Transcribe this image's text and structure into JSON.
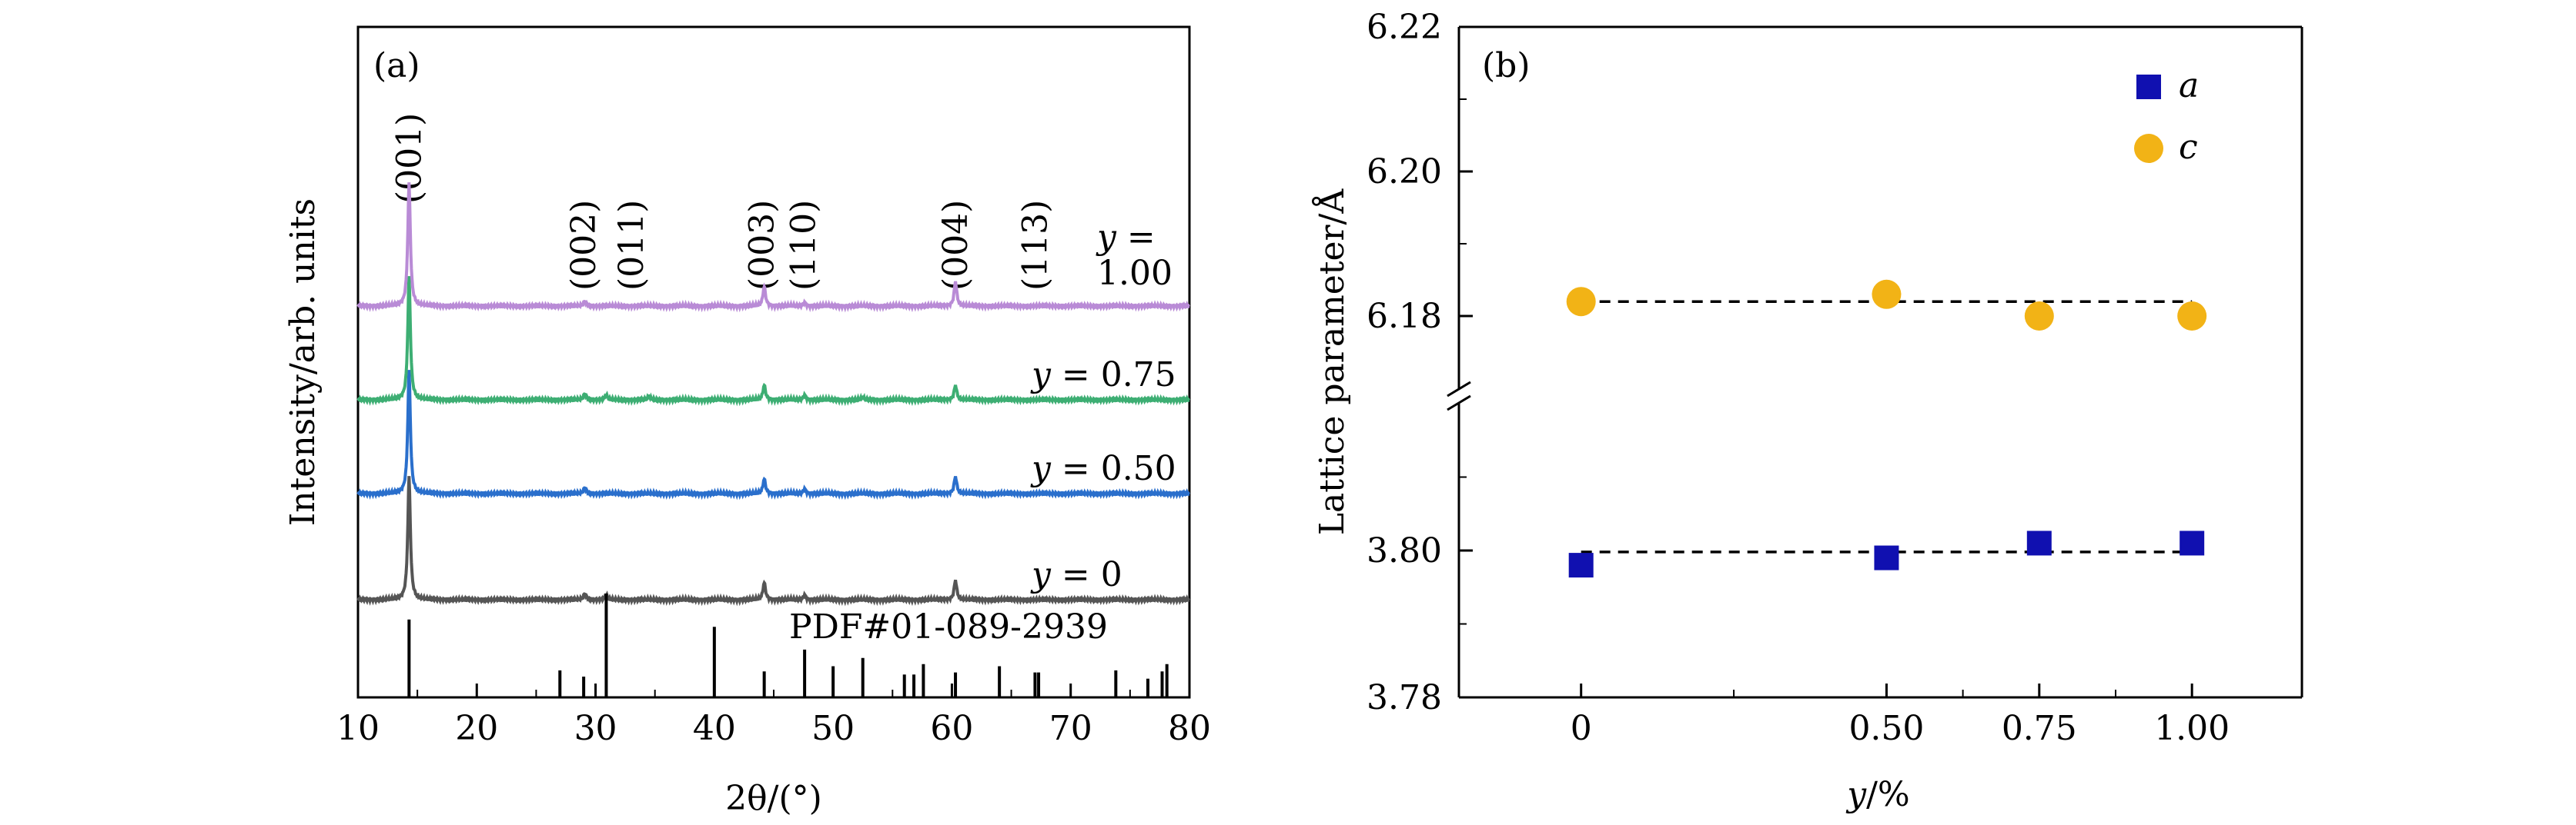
{
  "chart_data": [
    {
      "panel": "(a)",
      "type": "line",
      "xlabel": "2θ/(°)",
      "ylabel": "Intensity/arb. units",
      "xlim": [
        10,
        80
      ],
      "x_ticks": [
        "10",
        "20",
        "30",
        "40",
        "50",
        "60",
        "70",
        "80"
      ],
      "peak_labels": [
        {
          "text": "(001)",
          "x": 14.3
        },
        {
          "text": "(002)",
          "x": 29.0
        },
        {
          "text": "(011)",
          "x": 33.0
        },
        {
          "text": "(003)",
          "x": 44.0
        },
        {
          "text": "(110)",
          "x": 47.5
        },
        {
          "text": "(004)",
          "x": 60.3
        },
        {
          "text": "(113)",
          "x": 67.0
        }
      ],
      "series": [
        {
          "name": "y = 0",
          "color": "#555555",
          "peaks": [
            [
              14.3,
              1.0
            ],
            [
              29.1,
              0.05
            ],
            [
              30.9,
              0.04
            ],
            [
              44.2,
              0.14
            ],
            [
              47.6,
              0.04
            ],
            [
              60.3,
              0.16
            ]
          ]
        },
        {
          "name": "y = 0.50",
          "color": "#2a6fcc",
          "peaks": [
            [
              14.3,
              1.0
            ],
            [
              29.1,
              0.05
            ],
            [
              44.2,
              0.12
            ],
            [
              47.6,
              0.04
            ],
            [
              60.3,
              0.14
            ]
          ]
        },
        {
          "name": "y = 0.75",
          "color": "#3dae73",
          "peaks": [
            [
              14.3,
              1.0
            ],
            [
              29.1,
              0.05
            ],
            [
              30.9,
              0.04
            ],
            [
              34.5,
              0.03
            ],
            [
              44.2,
              0.12
            ],
            [
              47.6,
              0.04
            ],
            [
              52.5,
              0.02
            ],
            [
              60.3,
              0.12
            ]
          ]
        },
        {
          "name_lines": [
            "y =",
            "1.00"
          ],
          "color": "#b98bd6",
          "peaks": [
            [
              14.3,
              1.0
            ],
            [
              29.1,
              0.04
            ],
            [
              44.2,
              0.16
            ],
            [
              47.6,
              0.03
            ],
            [
              60.3,
              0.2
            ]
          ]
        }
      ],
      "reference": {
        "label": "PDF#01-089-2939",
        "sticks": [
          [
            14.3,
            0.75
          ],
          [
            27.0,
            0.26
          ],
          [
            29.0,
            0.2
          ],
          [
            30.9,
            1.0
          ],
          [
            40.0,
            0.68
          ],
          [
            44.2,
            0.25
          ],
          [
            47.6,
            0.46
          ],
          [
            50.0,
            0.3
          ],
          [
            52.5,
            0.38
          ],
          [
            56.0,
            0.22
          ],
          [
            56.8,
            0.22
          ],
          [
            57.6,
            0.32
          ],
          [
            60.3,
            0.24
          ],
          [
            64.0,
            0.3
          ],
          [
            67.0,
            0.24
          ],
          [
            67.3,
            0.24
          ],
          [
            73.8,
            0.26
          ],
          [
            76.5,
            0.18
          ],
          [
            77.7,
            0.25
          ],
          [
            78.1,
            0.32
          ]
        ]
      }
    },
    {
      "panel": "(b)",
      "type": "scatter",
      "xlabel": "y/%",
      "ylabel": "Lattice parameter/Å",
      "x": [
        0,
        0.5,
        0.75,
        1.0
      ],
      "x_ticks": [
        "0",
        "0.50",
        "0.75",
        "1.00"
      ],
      "xlim": [
        -0.2,
        1.18
      ],
      "y_break": true,
      "lower_ylim": [
        3.78,
        3.82
      ],
      "lower_ticks": [
        "3.78",
        "3.80"
      ],
      "upper_ylim": [
        6.17,
        6.22
      ],
      "upper_ticks": [
        "6.18",
        "6.20",
        "6.22"
      ],
      "series": [
        {
          "name": "a",
          "marker": "square",
          "color": "#1010b0",
          "values": [
            3.798,
            3.799,
            3.801,
            3.801
          ],
          "mean": 3.7998
        },
        {
          "name": "c",
          "marker": "circle",
          "color": "#f2b316",
          "values": [
            6.182,
            6.183,
            6.18,
            6.18
          ],
          "mean": 6.182
        }
      ]
    }
  ]
}
